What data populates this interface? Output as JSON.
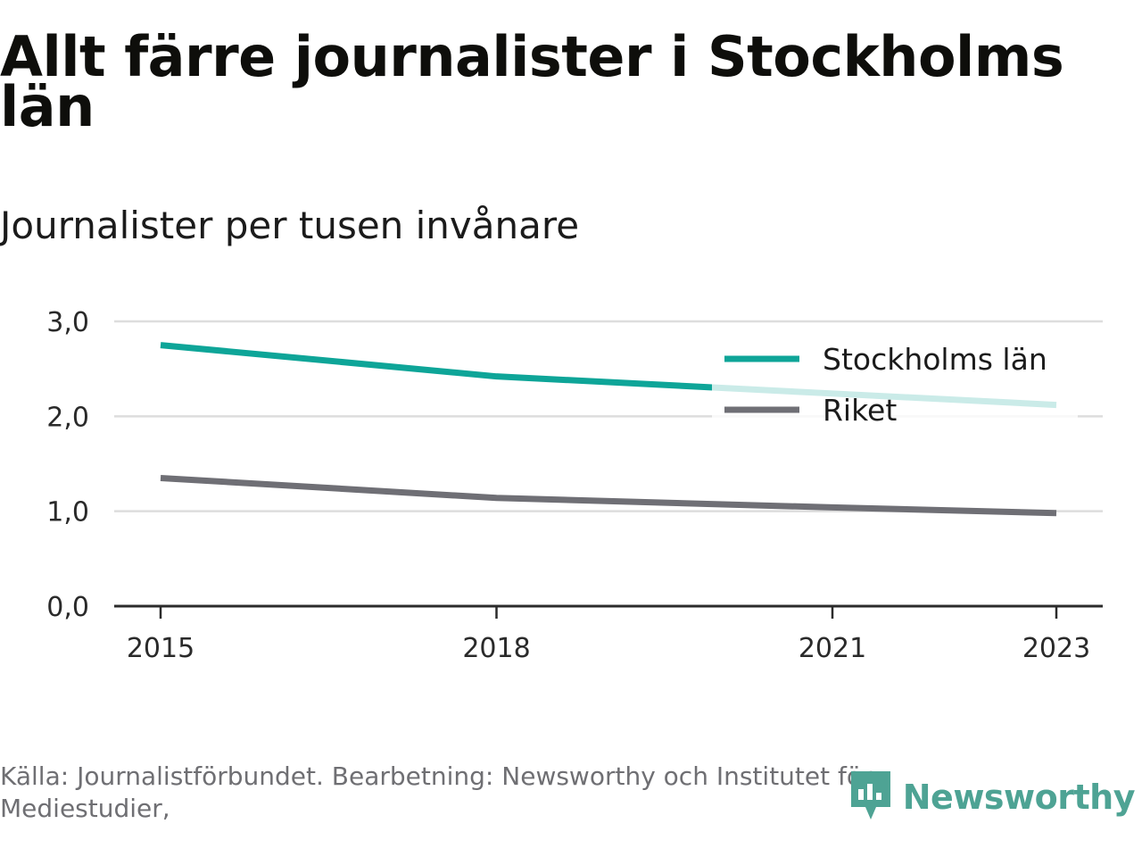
{
  "title": "Allt färre journalister i Stockholms län",
  "subtitle": "Journalister per tusen invånare",
  "source": "Källa: Journalistförbundet. Bearbetning: Newsworthy och Institutet för Mediestudier,",
  "brand": {
    "name": "Newsworthy",
    "icon": "newsworthy-logo-icon",
    "color": "#4ea394"
  },
  "chart_data": {
    "type": "line",
    "x": [
      2015,
      2018,
      2021,
      2023
    ],
    "xticks": [
      "2015",
      "2018",
      "2021",
      "2023"
    ],
    "yticks": [
      "0,0",
      "1,0",
      "2,0",
      "3,0"
    ],
    "ylim": [
      0,
      3
    ],
    "xlim": [
      2015,
      2023
    ],
    "grid": true,
    "legend": "top-right",
    "series": [
      {
        "name": "Stockholms län",
        "color": "#0ea598",
        "values": [
          2.75,
          2.42,
          2.24,
          2.12
        ]
      },
      {
        "name": "Riket",
        "color": "#6f6f75",
        "values": [
          1.35,
          1.14,
          1.04,
          0.98
        ]
      }
    ]
  }
}
